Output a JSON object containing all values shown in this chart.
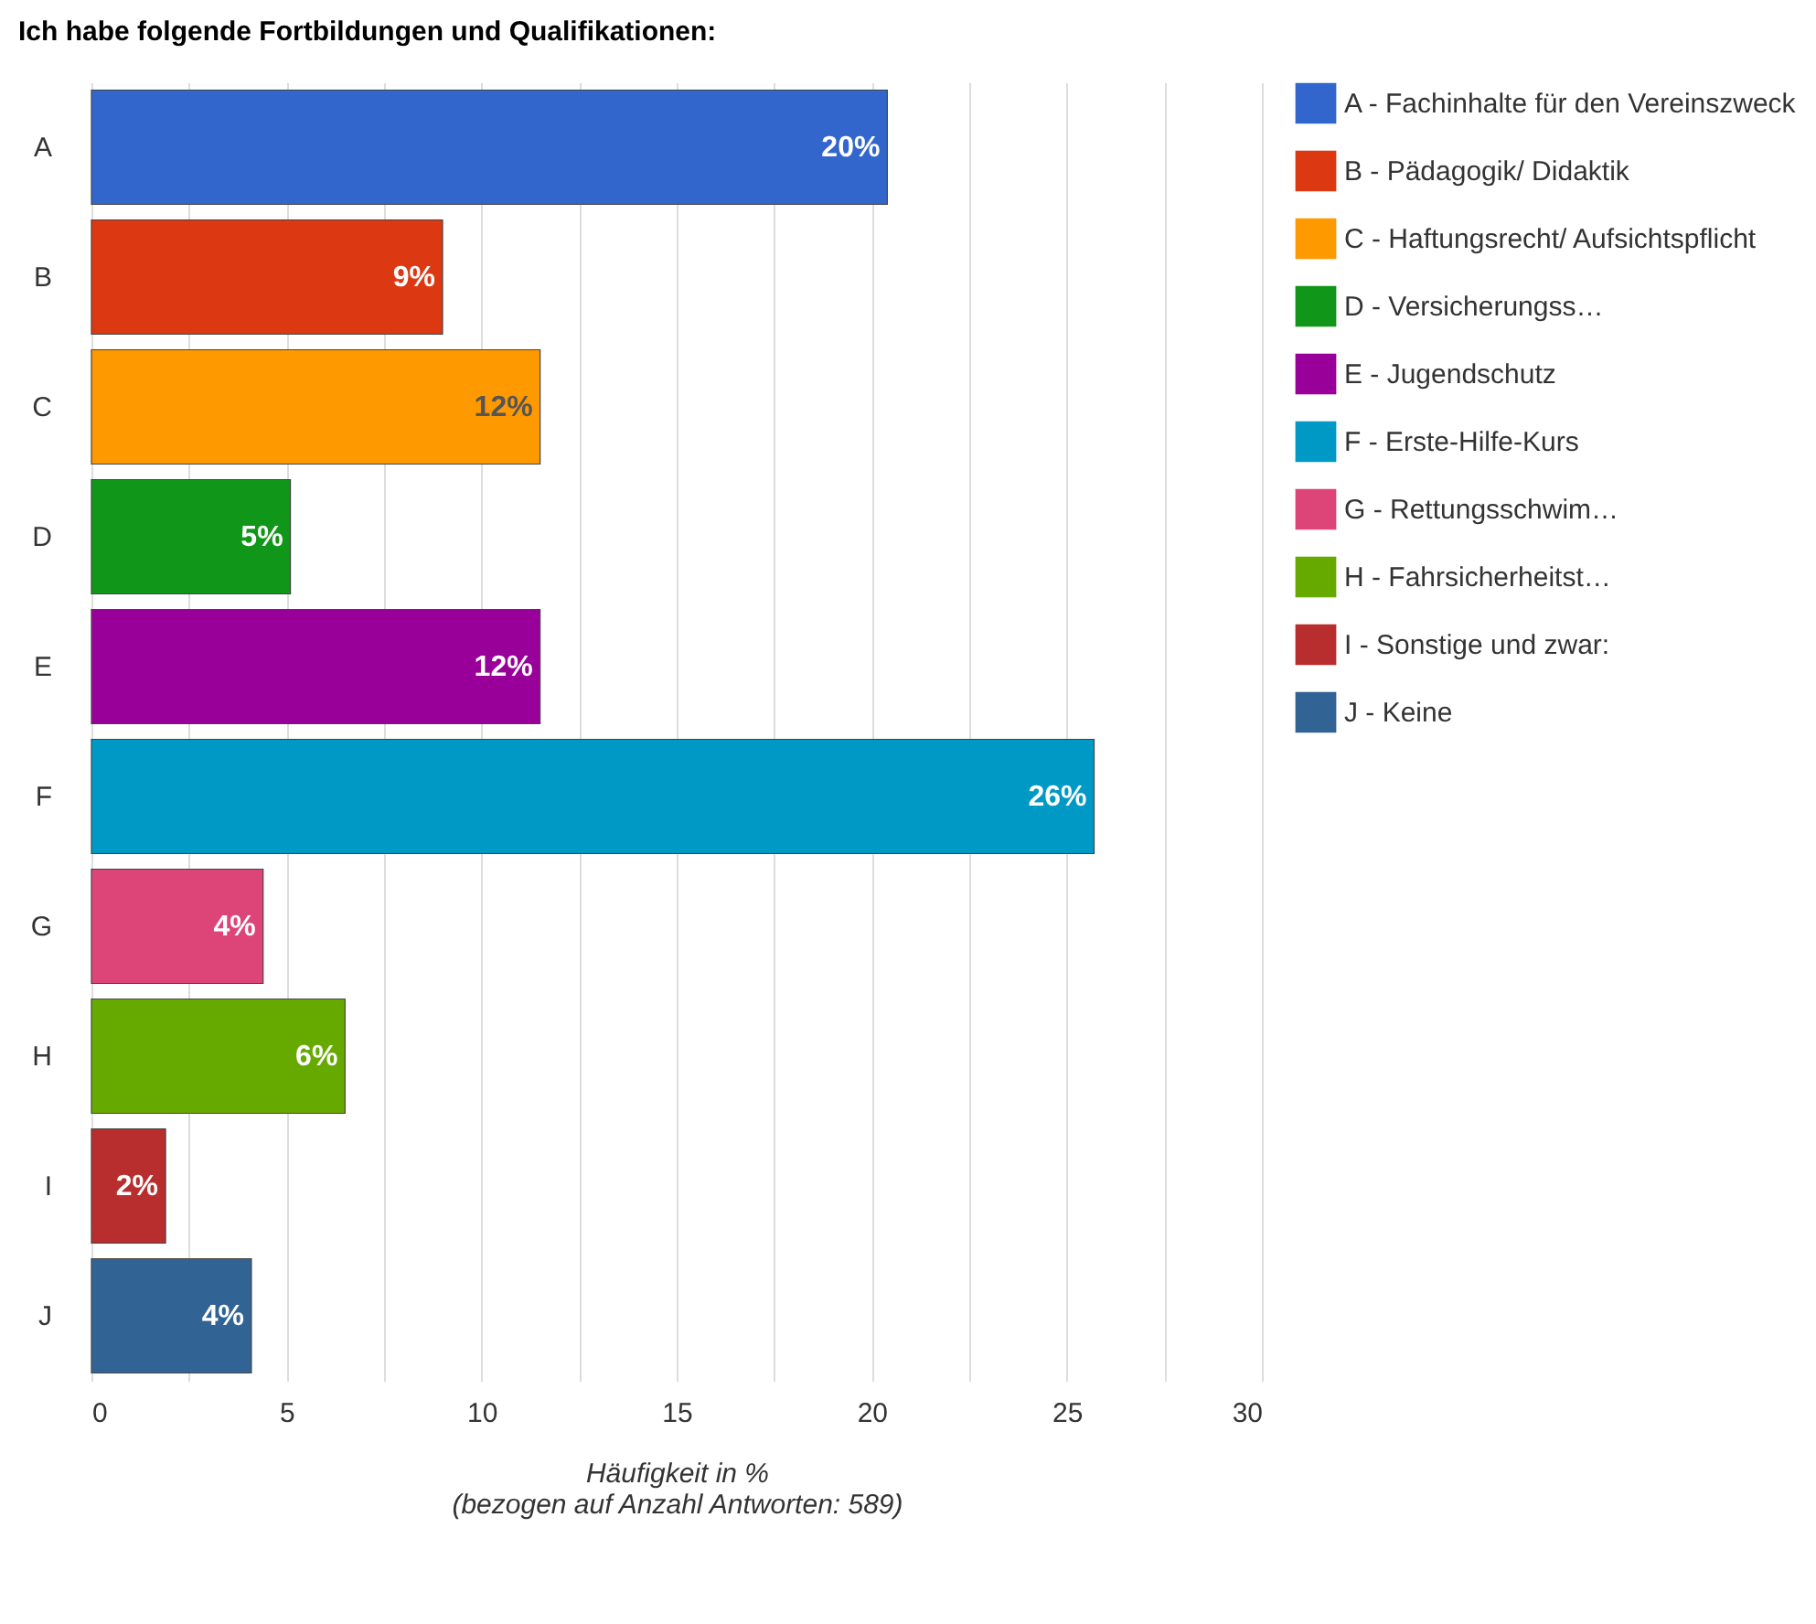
{
  "chart_data": {
    "type": "bar",
    "orientation": "horizontal",
    "title": "Ich habe folgende Fortbildungen und Qualifikationen:",
    "xlabel": "Häufigkeit in %\n(bezogen auf Anzahl Antworten: 589)",
    "categories": [
      "A",
      "B",
      "C",
      "D",
      "E",
      "F",
      "G",
      "H",
      "I",
      "J"
    ],
    "series": [
      {
        "name": "A - Fachinhalte für den Vereinszweck",
        "color": "#3366cc",
        "values": [
          20.4,
          null,
          null,
          null,
          null,
          null,
          null,
          null,
          null,
          null
        ],
        "value_labels": [
          "20%",
          null,
          null,
          null,
          null,
          null,
          null,
          null,
          null,
          null
        ]
      },
      {
        "name": "B - Pädagogik/ Didaktik",
        "color": "#dc3912",
        "values": [
          null,
          9.0,
          null,
          null,
          null,
          null,
          null,
          null,
          null,
          null
        ],
        "value_labels": [
          null,
          "9%",
          null,
          null,
          null,
          null,
          null,
          null,
          null,
          null
        ]
      },
      {
        "name": "C - Haftungsrecht/ Aufsichtspflicht",
        "color": "#ff9900",
        "values": [
          null,
          null,
          11.5,
          null,
          null,
          null,
          null,
          null,
          null,
          null
        ],
        "value_labels": [
          null,
          null,
          "12%",
          null,
          null,
          null,
          null,
          null,
          null,
          null
        ]
      },
      {
        "name": "D - Versicherungss…",
        "color": "#109618",
        "values": [
          null,
          null,
          null,
          5.1,
          null,
          null,
          null,
          null,
          null,
          null
        ],
        "value_labels": [
          null,
          null,
          null,
          "5%",
          null,
          null,
          null,
          null,
          null,
          null
        ]
      },
      {
        "name": "E - Jugendschutz",
        "color": "#990099",
        "values": [
          null,
          null,
          null,
          null,
          11.5,
          null,
          null,
          null,
          null,
          null
        ],
        "value_labels": [
          null,
          null,
          null,
          null,
          "12%",
          null,
          null,
          null,
          null,
          null
        ]
      },
      {
        "name": "F - Erste-Hilfe-Kurs",
        "color": "#0099c6",
        "values": [
          null,
          null,
          null,
          null,
          null,
          25.7,
          null,
          null,
          null,
          null
        ],
        "value_labels": [
          null,
          null,
          null,
          null,
          null,
          "26%",
          null,
          null,
          null,
          null
        ]
      },
      {
        "name": "G - Rettungsschwim…",
        "color": "#dd4477",
        "values": [
          null,
          null,
          null,
          null,
          null,
          null,
          4.4,
          null,
          null,
          null
        ],
        "value_labels": [
          null,
          null,
          null,
          null,
          null,
          null,
          "4%",
          null,
          null,
          null
        ]
      },
      {
        "name": "H - Fahrsicherheitst…",
        "color": "#66aa00",
        "values": [
          null,
          null,
          null,
          null,
          null,
          null,
          null,
          6.5,
          null,
          null
        ],
        "value_labels": [
          null,
          null,
          null,
          null,
          null,
          null,
          null,
          "6%",
          null,
          null
        ]
      },
      {
        "name": "I - Sonstige und zwar:",
        "color": "#b82e2e",
        "values": [
          null,
          null,
          null,
          null,
          null,
          null,
          null,
          null,
          1.9,
          null
        ],
        "value_labels": [
          null,
          null,
          null,
          null,
          null,
          null,
          null,
          null,
          "2%",
          null
        ]
      },
      {
        "name": "J - Keine",
        "color": "#316395",
        "values": [
          null,
          null,
          null,
          null,
          null,
          null,
          null,
          null,
          null,
          4.1
        ],
        "value_labels": [
          null,
          null,
          null,
          null,
          null,
          null,
          null,
          null,
          null,
          "4%"
        ]
      }
    ],
    "xlim": [
      0,
      30
    ],
    "xticks": [
      0,
      {
        "value": 2.5,
        "label": null
      },
      5,
      {
        "value": 7.5,
        "label": null
      },
      10,
      {
        "value": 12.5,
        "label": null
      },
      15,
      {
        "value": 17.5,
        "label": null
      },
      20,
      {
        "value": 22.5,
        "label": null
      },
      25,
      {
        "value": 27.5,
        "label": null
      },
      30
    ],
    "grid": "x",
    "legend": "right"
  }
}
